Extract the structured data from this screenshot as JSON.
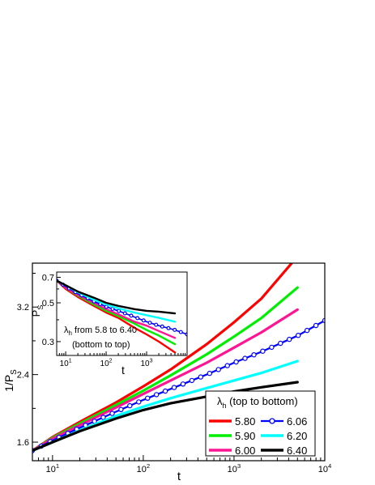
{
  "chart_data": [
    {
      "type": "line",
      "role": "main",
      "xscale": "log",
      "xlim": [
        6,
        10000
      ],
      "ylim": [
        1.38,
        3.72
      ],
      "xlabel": "t",
      "ylabel_main": "1/P",
      "ylabel_sub": "S",
      "xticks": [
        {
          "value": 10,
          "base": "10",
          "exp": "1"
        },
        {
          "value": 100,
          "base": "10",
          "exp": "2"
        },
        {
          "value": 1000,
          "base": "10",
          "exp": "3"
        },
        {
          "value": 10000,
          "base": "10",
          "exp": "4"
        }
      ],
      "yticks": [
        "1.6",
        "2.4",
        "3.2"
      ],
      "legend": {
        "title_main": "λ",
        "title_sub": "h",
        "title_rest": " (top to bottom)",
        "placement": "bottom-right",
        "columns": [
          [
            "5.80",
            "5.90",
            "6.00"
          ],
          [
            "6.06",
            "6.20",
            "6.40"
          ]
        ]
      },
      "series": [
        {
          "name": "5.80",
          "color": "#ff0000",
          "style": "line",
          "x": [
            6,
            10,
            20,
            50,
            100,
            200,
            500,
            1000,
            2000,
            5000
          ],
          "y": [
            1.5,
            1.66,
            1.84,
            2.07,
            2.26,
            2.46,
            2.76,
            3.02,
            3.3,
            3.8
          ]
        },
        {
          "name": "5.90",
          "color": "#00ee00",
          "style": "line",
          "x": [
            6,
            10,
            20,
            50,
            100,
            200,
            500,
            1000,
            2000,
            5000
          ],
          "y": [
            1.5,
            1.65,
            1.82,
            2.04,
            2.21,
            2.39,
            2.64,
            2.85,
            3.07,
            3.43
          ]
        },
        {
          "name": "6.00",
          "color": "#ff1493",
          "style": "line",
          "x": [
            6,
            10,
            20,
            50,
            100,
            200,
            500,
            1000,
            2000,
            5000
          ],
          "y": [
            1.5,
            1.64,
            1.8,
            2.01,
            2.17,
            2.33,
            2.54,
            2.72,
            2.9,
            3.17
          ]
        },
        {
          "name": "6.06",
          "color": "#0000ff",
          "style": "open-circle-line",
          "x": [
            6,
            10,
            20,
            50,
            100,
            200,
            500,
            1000,
            2000,
            5000,
            10000
          ],
          "y": [
            1.5,
            1.62,
            1.77,
            1.96,
            2.1,
            2.23,
            2.4,
            2.54,
            2.67,
            2.86,
            3.04
          ]
        },
        {
          "name": "6.20",
          "color": "#00ffff",
          "style": "line",
          "x": [
            6,
            10,
            20,
            50,
            100,
            200,
            500,
            1000,
            2000,
            5000
          ],
          "y": [
            1.5,
            1.6,
            1.74,
            1.91,
            2.02,
            2.12,
            2.24,
            2.33,
            2.42,
            2.56
          ]
        },
        {
          "name": "6.40",
          "color": "#000000",
          "style": "line",
          "x": [
            6,
            10,
            20,
            50,
            100,
            200,
            500,
            1000,
            2000,
            5000
          ],
          "y": [
            1.5,
            1.6,
            1.73,
            1.88,
            1.98,
            2.06,
            2.14,
            2.2,
            2.25,
            2.31
          ]
        }
      ]
    },
    {
      "type": "line",
      "role": "inset",
      "xscale": "log",
      "yscale": "log",
      "xlim": [
        6,
        10000
      ],
      "ylim": [
        0.25,
        0.75
      ],
      "xlabel": "t",
      "ylabel_main": "P",
      "ylabel_sub": "S",
      "xticks": [
        {
          "value": 10,
          "base": "10",
          "exp": "1"
        },
        {
          "value": 100,
          "base": "10",
          "exp": "2"
        },
        {
          "value": 1000,
          "base": "10",
          "exp": "3"
        }
      ],
      "yticks": [
        {
          "value": 0.3,
          "label": "0.3"
        },
        {
          "value": 0.5,
          "label": "0.5"
        },
        {
          "value": 0.7,
          "label": "0.7"
        }
      ],
      "annotation": {
        "line1_main": "λ",
        "line1_sub": "h",
        "line1_rest": " from 5.8 to 6.40",
        "line2": "(bottom to top)"
      },
      "series": [
        {
          "name": "5.80",
          "color": "#ff0000",
          "style": "line",
          "x": [
            6,
            10,
            20,
            50,
            100,
            200,
            500,
            1000,
            2000,
            5000
          ],
          "y": [
            0.67,
            0.6,
            0.54,
            0.48,
            0.44,
            0.41,
            0.36,
            0.33,
            0.3,
            0.26
          ]
        },
        {
          "name": "5.90",
          "color": "#00ee00",
          "style": "line",
          "x": [
            6,
            10,
            20,
            50,
            100,
            200,
            500,
            1000,
            2000,
            5000
          ],
          "y": [
            0.67,
            0.61,
            0.55,
            0.49,
            0.45,
            0.42,
            0.38,
            0.35,
            0.325,
            0.29
          ]
        },
        {
          "name": "6.00",
          "color": "#ff1493",
          "style": "line",
          "x": [
            6,
            10,
            20,
            50,
            100,
            200,
            500,
            1000,
            2000,
            5000
          ],
          "y": [
            0.67,
            0.61,
            0.555,
            0.5,
            0.46,
            0.43,
            0.39,
            0.37,
            0.345,
            0.315
          ]
        },
        {
          "name": "6.06",
          "color": "#0000ff",
          "style": "open-circle-line",
          "x": [
            6,
            10,
            20,
            50,
            100,
            200,
            500,
            1000,
            2000,
            5000,
            10000
          ],
          "y": [
            0.67,
            0.62,
            0.565,
            0.51,
            0.475,
            0.45,
            0.415,
            0.39,
            0.37,
            0.35,
            0.33
          ]
        },
        {
          "name": "6.20",
          "color": "#00ffff",
          "style": "line",
          "x": [
            6,
            10,
            20,
            50,
            100,
            200,
            500,
            1000,
            2000,
            5000
          ],
          "y": [
            0.67,
            0.63,
            0.575,
            0.52,
            0.49,
            0.465,
            0.44,
            0.425,
            0.41,
            0.39
          ]
        },
        {
          "name": "6.40",
          "color": "#000000",
          "style": "line",
          "x": [
            6,
            10,
            20,
            50,
            100,
            200,
            500,
            1000,
            2000,
            5000
          ],
          "y": [
            0.67,
            0.63,
            0.58,
            0.535,
            0.5,
            0.48,
            0.46,
            0.45,
            0.445,
            0.435
          ]
        }
      ]
    }
  ]
}
